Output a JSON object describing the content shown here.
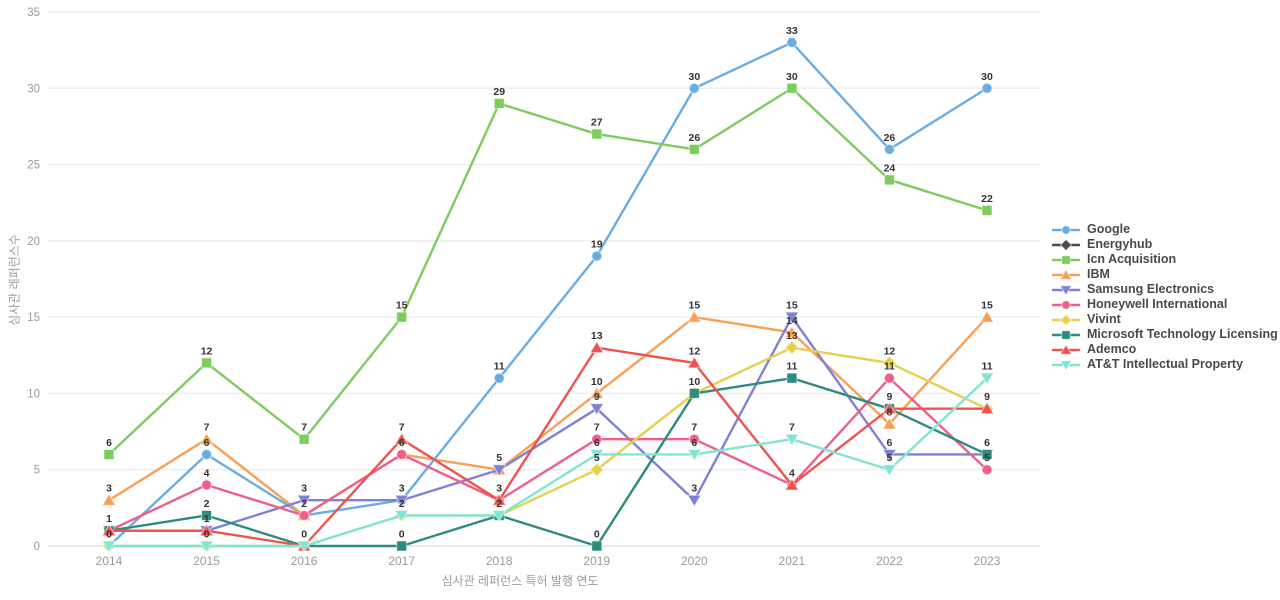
{
  "chart_data": {
    "type": "line",
    "title": "",
    "xlabel": "심사관 레퍼런스 특허 발행 연도",
    "ylabel": "심사관 레퍼런스수",
    "categories": [
      "2014",
      "2015",
      "2016",
      "2017",
      "2018",
      "2019",
      "2020",
      "2021",
      "2022",
      "2023"
    ],
    "ylim": [
      0,
      35
    ],
    "yticks": [
      0,
      5,
      10,
      15,
      20,
      25,
      30,
      35
    ],
    "grid": true,
    "legend_position": "right",
    "point_labels": true,
    "series": [
      {
        "name": "Google",
        "color": "#69ade3",
        "marker": "circle",
        "values": [
          0,
          6,
          2,
          3,
          11,
          19,
          30,
          33,
          26,
          30
        ]
      },
      {
        "name": "Energyhub",
        "color": "#4a4a4a",
        "marker": "diamond",
        "values": [
          null,
          null,
          null,
          null,
          null,
          null,
          null,
          null,
          null,
          null
        ]
      },
      {
        "name": "Icn Acquisition",
        "color": "#7ecb5f",
        "marker": "square",
        "values": [
          6,
          12,
          7,
          15,
          29,
          27,
          26,
          30,
          24,
          22
        ]
      },
      {
        "name": "IBM",
        "color": "#f9a054",
        "marker": "triangle-up",
        "values": [
          3,
          7,
          2,
          6,
          5,
          10,
          15,
          14,
          8,
          15
        ]
      },
      {
        "name": "Samsung Electronics",
        "color": "#8080d7",
        "marker": "triangle-down",
        "values": [
          1,
          1,
          3,
          3,
          5,
          9,
          3,
          15,
          6,
          6
        ]
      },
      {
        "name": "Honeywell International",
        "color": "#ee5f8b",
        "marker": "circle",
        "values": [
          1,
          4,
          2,
          6,
          3,
          7,
          7,
          4,
          11,
          5
        ]
      },
      {
        "name": "Vivint",
        "color": "#e6d04f",
        "marker": "diamond",
        "values": [
          0,
          0,
          0,
          2,
          2,
          5,
          10,
          13,
          12,
          9
        ]
      },
      {
        "name": "Microsoft Technology Licensing",
        "color": "#2e8b7f",
        "marker": "square",
        "values": [
          1,
          2,
          0,
          0,
          2,
          0,
          10,
          11,
          9,
          6
        ]
      },
      {
        "name": "Ademco",
        "color": "#ef5350",
        "marker": "triangle-up",
        "values": [
          1,
          1,
          0,
          7,
          3,
          13,
          12,
          4,
          9,
          9
        ]
      },
      {
        "name": "AT&T Intellectual Property",
        "color": "#82e4d2",
        "marker": "triangle-down",
        "values": [
          0,
          0,
          0,
          2,
          2,
          6,
          6,
          7,
          5,
          11
        ]
      }
    ],
    "style": {
      "grid_color": "#ebebeb",
      "zero_line_color": "#d5e0f0",
      "tick_label_color": "#9b9b9b",
      "point_label_color": "#333333"
    }
  }
}
